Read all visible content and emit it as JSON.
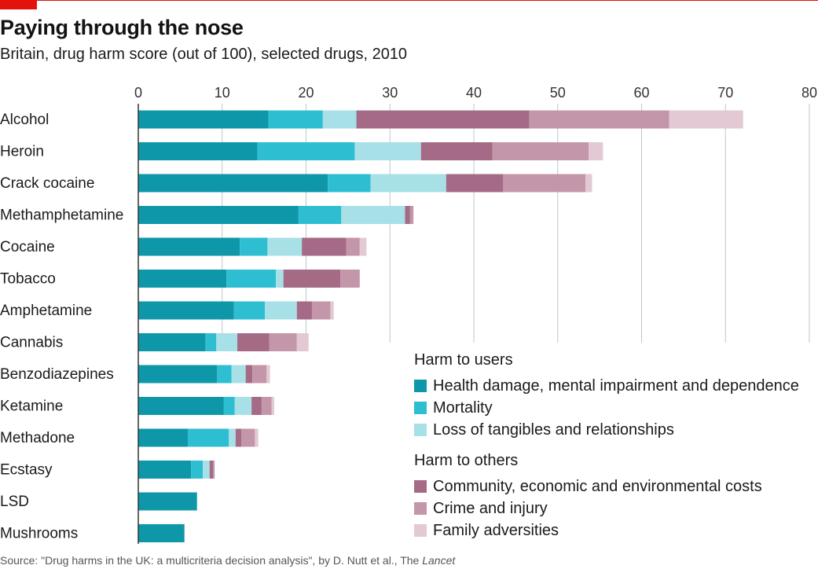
{
  "header": {
    "title": "Paying through the nose",
    "subtitle": "Britain, drug harm score (out of 100), selected drugs, 2010"
  },
  "colors": {
    "accent": "#e3120b",
    "gridline": "#b9c8d1",
    "baseline": "#333333"
  },
  "legend": {
    "groups": [
      {
        "title": "Harm to users",
        "items": [
          {
            "label": "Health damage, mental impairment and dependence",
            "color": "#0e97a8"
          },
          {
            "label": "Mortality",
            "color": "#2dbfd1"
          },
          {
            "label": "Loss of tangibles and relationships",
            "color": "#a8e0e7"
          }
        ]
      },
      {
        "title": "Harm to others",
        "items": [
          {
            "label": "Community, economic and environmental costs",
            "color": "#a56b86"
          },
          {
            "label": "Crime and injury",
            "color": "#c496aa"
          },
          {
            "label": "Family adversities",
            "color": "#e2c9d3"
          }
        ]
      }
    ]
  },
  "chart_data": {
    "type": "bar",
    "orientation": "horizontal",
    "stacked": true,
    "title": "Paying through the nose",
    "subtitle": "Britain, drug harm score (out of 100), selected drugs, 2010",
    "xlim": [
      0,
      80
    ],
    "xticks": [
      0,
      10,
      20,
      30,
      40,
      50,
      60,
      70,
      80
    ],
    "grid": true,
    "legend_position": "bottom-right",
    "categories": [
      "Alcohol",
      "Heroin",
      "Crack cocaine",
      "Methamphetamine",
      "Cocaine",
      "Tobacco",
      "Amphetamine",
      "Cannabis",
      "Benzodiazepines",
      "Ketamine",
      "Methadone",
      "Ecstasy",
      "LSD",
      "Mushrooms"
    ],
    "series": [
      {
        "name": "Health damage, mental impairment and dependence",
        "color": "#0e97a8",
        "values": [
          15.5,
          14.2,
          22.6,
          19.1,
          12.1,
          10.5,
          11.4,
          8.0,
          9.4,
          10.2,
          5.9,
          6.3,
          7.0,
          5.5
        ]
      },
      {
        "name": "Mortality",
        "color": "#2dbfd1",
        "values": [
          6.5,
          11.6,
          5.1,
          5.1,
          3.3,
          5.9,
          3.7,
          1.3,
          1.7,
          1.3,
          4.9,
          1.4,
          0,
          0
        ]
      },
      {
        "name": "Loss of tangibles and relationships",
        "color": "#a8e0e7",
        "values": [
          4.0,
          7.9,
          9.0,
          7.6,
          4.1,
          0.9,
          3.8,
          2.5,
          1.7,
          2.0,
          0.8,
          0.8,
          0,
          0
        ]
      },
      {
        "name": "Community, economic and environmental costs",
        "color": "#a56b86",
        "values": [
          20.6,
          8.5,
          6.8,
          0.6,
          5.3,
          6.8,
          1.8,
          3.8,
          0.8,
          1.2,
          0.7,
          0.4,
          0,
          0
        ]
      },
      {
        "name": "Crime and injury",
        "color": "#c496aa",
        "values": [
          16.7,
          11.5,
          9.8,
          0.4,
          1.6,
          2.3,
          2.2,
          3.3,
          1.7,
          1.2,
          1.6,
          0.2,
          0,
          0
        ]
      },
      {
        "name": "Family adversities",
        "color": "#e2c9d3",
        "values": [
          8.8,
          1.7,
          0.8,
          0,
          0.8,
          0,
          0.4,
          1.4,
          0.4,
          0.3,
          0.4,
          0,
          0,
          0
        ]
      }
    ]
  },
  "source": {
    "prefix": "Source: \"Drug harms in the UK: a multicriteria decision analysis\", by D. Nutt et al., The ",
    "journal": "Lancet"
  }
}
